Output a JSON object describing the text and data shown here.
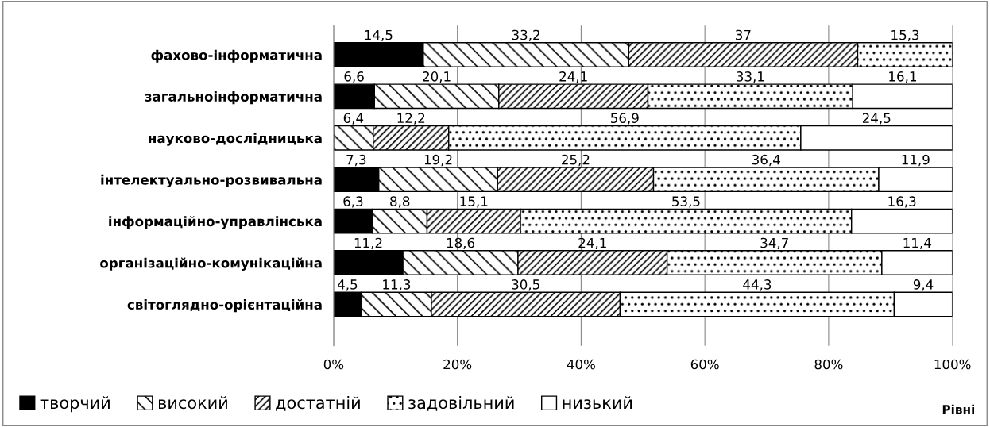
{
  "chart_data": {
    "type": "bar",
    "orientation": "horizontal",
    "stacked": true,
    "categories": [
      "фахово-інформатична",
      "загальноінформатична",
      "науково-дослідницька",
      "інтелектуально-розвивальна",
      "інформаційно-управлінська",
      "організаційно-комунікаційна",
      "світоглядно-орієнтаційна"
    ],
    "series": [
      {
        "name": "творчий",
        "color": "#000000",
        "values": [
          14.5,
          6.6,
          0,
          7.3,
          6.3,
          11.2,
          4.5
        ],
        "value_labels": [
          "14,5",
          "6,6",
          null,
          "7,3",
          "6,3",
          "11,2",
          "4,5"
        ]
      },
      {
        "name": "високий",
        "color": "#000000",
        "values": [
          33.2,
          20.1,
          6.4,
          19.2,
          8.8,
          18.6,
          11.3
        ],
        "value_labels": [
          "33,2",
          "20,1",
          "6,4",
          "19,2",
          "8,8",
          "18,6",
          "11,3"
        ]
      },
      {
        "name": "достатній",
        "color": "#000000",
        "values": [
          37,
          24.1,
          12.2,
          25.2,
          15.1,
          24.1,
          30.5
        ],
        "value_labels": [
          "37",
          "24,1",
          "12,2",
          "25,2",
          "15,1",
          "24,1",
          "30,5"
        ]
      },
      {
        "name": "задовільний",
        "color": "#000000",
        "values": [
          15.3,
          33.1,
          56.9,
          36.4,
          53.5,
          34.7,
          44.3
        ],
        "value_labels": [
          "15,3",
          "33,1",
          "56,9",
          "36,4",
          "53,5",
          "34,7",
          "44,3"
        ]
      },
      {
        "name": "низький",
        "color": "#ffffff",
        "values": [
          0,
          16.1,
          24.5,
          11.9,
          16.3,
          11.4,
          9.4
        ],
        "value_labels": [
          null,
          "16,1",
          "24,5",
          "11,9",
          "16,3",
          "11,4",
          "9,4"
        ]
      }
    ],
    "xlim": [
      0,
      100
    ],
    "xticks": [
      {
        "value": 0,
        "label": "0%"
      },
      {
        "value": 20,
        "label": "20%"
      },
      {
        "value": 40,
        "label": "40%"
      },
      {
        "value": 60,
        "label": "60%"
      },
      {
        "value": 80,
        "label": "80%"
      },
      {
        "value": 100,
        "label": "100%"
      }
    ],
    "grid": "x",
    "legend": "bottom",
    "legend_title": "Рівні"
  }
}
